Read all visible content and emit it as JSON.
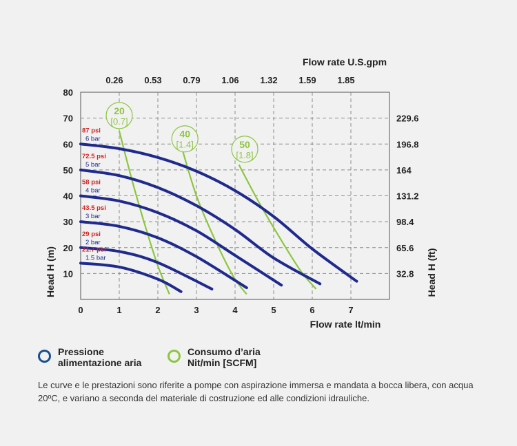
{
  "chart_data": {
    "type": "line",
    "top_axis_title": "Flow rate U.S.gpm",
    "top_ticks": [
      "0.26",
      "0.53",
      "0.79",
      "1.06",
      "1.32",
      "1.59",
      "1.85"
    ],
    "top_tick_positions": [
      1,
      2,
      3,
      4,
      5,
      6,
      7
    ],
    "xlabel": "Flow rate lt/min",
    "ylabel_left": "Head H (m)",
    "ylabel_right": "Head H (ft)",
    "xlim": [
      0,
      8
    ],
    "ylim": [
      0,
      80
    ],
    "x_ticks": [
      0,
      1,
      2,
      3,
      4,
      5,
      6,
      7
    ],
    "y_ticks": [
      10,
      20,
      30,
      40,
      50,
      60,
      70,
      80
    ],
    "right_ticks": [
      {
        "label": "229.6",
        "y": 70
      },
      {
        "label": "196.8",
        "y": 60
      },
      {
        "label": "164",
        "y": 50
      },
      {
        "label": "131.2",
        "y": 40
      },
      {
        "label": "98.4",
        "y": 30
      },
      {
        "label": "65.6",
        "y": 20
      },
      {
        "label": "32.8",
        "y": 10
      }
    ],
    "grid": true,
    "series": [
      {
        "psi": "87 psi",
        "bar": "6 bar",
        "x": [
          0,
          1,
          2,
          3,
          4,
          5,
          6,
          7.15
        ],
        "y": [
          60,
          58.2,
          54.8,
          49.5,
          42.0,
          32.0,
          19.5,
          7
        ]
      },
      {
        "psi": "72.5 psi",
        "bar": "5 bar",
        "x": [
          0,
          1,
          2,
          3,
          4,
          5,
          6.2
        ],
        "y": [
          50,
          47.8,
          43.2,
          36.2,
          27.0,
          16.0,
          6
        ]
      },
      {
        "psi": "58 psi",
        "bar": "4 bar",
        "x": [
          0,
          1,
          2,
          3,
          4,
          5.2
        ],
        "y": [
          40,
          38.0,
          33.5,
          26.5,
          17.0,
          5.5
        ]
      },
      {
        "psi": "43.5 psi",
        "bar": "3 bar",
        "x": [
          0,
          1,
          2,
          3,
          4.3
        ],
        "y": [
          30,
          28.2,
          23.8,
          16.5,
          4.5
        ]
      },
      {
        "psi": "29 psi",
        "bar": "2 bar",
        "x": [
          0,
          1,
          2,
          3.4
        ],
        "y": [
          20,
          18.5,
          14.2,
          4.0
        ]
      },
      {
        "psi": "21.7 psi",
        "bar": "1.5 bar",
        "x": [
          0,
          1,
          2,
          2.6
        ],
        "y": [
          14,
          12.5,
          7.8,
          3.0
        ]
      }
    ],
    "air_consumption": [
      {
        "value": "20",
        "scfm": "[0.7]",
        "x": [
          1.0,
          1.35,
          1.7,
          2.0,
          2.3
        ],
        "y": [
          65,
          45,
          27,
          13,
          2
        ],
        "label_at": [
          1.0,
          71
        ]
      },
      {
        "value": "40",
        "scfm": "[1.4]",
        "x": [
          2.65,
          3.0,
          3.45,
          3.95,
          4.3
        ],
        "y": [
          57,
          40,
          24,
          9,
          2
        ],
        "label_at": [
          2.7,
          62
        ]
      },
      {
        "value": "50",
        "scfm": "[1.8]",
        "x": [
          4.1,
          4.6,
          5.15,
          5.7,
          6.1
        ],
        "y": [
          52,
          38,
          24,
          11,
          4
        ],
        "label_at": [
          4.25,
          58
        ]
      }
    ],
    "colors": {
      "pressure": "#1f2a8c",
      "air": "#8cc63f",
      "psi_text": "#d42020",
      "bar_text": "#1f2a8c",
      "grid": "#8a8a8a"
    }
  },
  "legend": {
    "pressure_line1": "Pressione",
    "pressure_line2": "alimentazione aria",
    "air_line1": "Consumo d’aria",
    "air_line2": "Nit/min [SCFM]"
  },
  "footnote": "Le curve e le prestazioni sono riferite a pompe con aspirazione immersa e mandata a bocca libera, con acqua  20ºC, e variano a seconda del materiale di costruzione ed alle condizioni idrauliche."
}
